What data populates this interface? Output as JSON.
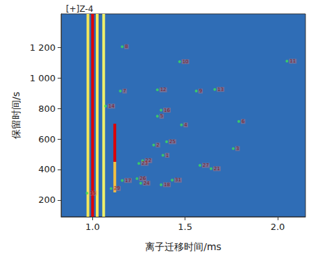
{
  "chart_data": {
    "type": "scatter",
    "title": "[+]Z-4",
    "x_label": "离子迁移时间/ms",
    "y_label": "保留时间/s",
    "xlim": [
      0.83,
      2.15
    ],
    "xticks": [
      {
        "value": 1,
        "label": "1.0"
      },
      1.5,
      {
        "value": 2,
        "label": "2.0"
      }
    ],
    "ylim": [
      90,
      1420
    ],
    "yticks": [
      200,
      400,
      600,
      800,
      {
        "value": 1000,
        "label": "1 000"
      },
      {
        "value": 1200,
        "label": "1 200"
      }
    ],
    "grid": false,
    "color": "#3ddc5a",
    "marker": "circle",
    "points": [
      {
        "label": "8",
        "x": 1.16,
        "y": 1205
      },
      {
        "label": "10",
        "x": 1.47,
        "y": 1107
      },
      {
        "label": "11",
        "x": 2.05,
        "y": 1110
      },
      {
        "label": "7",
        "x": 1.15,
        "y": 914
      },
      {
        "label": "12",
        "x": 1.35,
        "y": 922
      },
      {
        "label": "9",
        "x": 1.56,
        "y": 914
      },
      {
        "label": "13",
        "x": 1.66,
        "y": 925
      },
      {
        "label": "14",
        "x": 1.07,
        "y": 815
      },
      {
        "label": "16",
        "x": 1.37,
        "y": 789
      },
      {
        "label": "5",
        "x": 1.35,
        "y": 749
      },
      {
        "label": "6",
        "x": 1.79,
        "y": 715
      },
      {
        "label": "4",
        "x": 1.48,
        "y": 692
      },
      {
        "label": "25",
        "x": 1.4,
        "y": 582
      },
      {
        "label": "2",
        "x": 1.33,
        "y": 560
      },
      {
        "label": "3",
        "x": 1.76,
        "y": 537
      },
      {
        "label": "1",
        "x": 1.38,
        "y": 493
      },
      {
        "label": "22",
        "x": 1.27,
        "y": 458
      },
      {
        "label": "23",
        "x": 1.25,
        "y": 440
      },
      {
        "label": "27",
        "x": 1.58,
        "y": 427
      },
      {
        "label": "21",
        "x": 1.64,
        "y": 405
      },
      {
        "label": "26",
        "x": 1.24,
        "y": 340
      },
      {
        "label": "17",
        "x": 1.16,
        "y": 328
      },
      {
        "label": "29",
        "x": 1.1,
        "y": 275
      },
      {
        "label": "31",
        "x": 1.43,
        "y": 330
      },
      {
        "label": "18",
        "x": 1.37,
        "y": 300
      },
      {
        "label": "24",
        "x": 1.26,
        "y": 310
      },
      {
        "label": "15",
        "x": 0.97,
        "y": 245
      }
    ],
    "bands": [
      {
        "x": 1.0,
        "y": [
          90,
          1420
        ],
        "color": "#e00000"
      },
      {
        "x": 0.975,
        "y": [
          90,
          1420
        ],
        "color": "#f5e65a"
      },
      {
        "x": 1.025,
        "y": [
          90,
          1420
        ],
        "color": "#f5e65a"
      },
      {
        "x": 1.06,
        "y": [
          90,
          1420
        ],
        "color": "#f0f06a"
      },
      {
        "x": 1.12,
        "y": [
          450,
          700
        ],
        "color": "#e00000"
      },
      {
        "x": 1.12,
        "y": [
          250,
          450
        ],
        "color": "#f5c040"
      }
    ]
  }
}
